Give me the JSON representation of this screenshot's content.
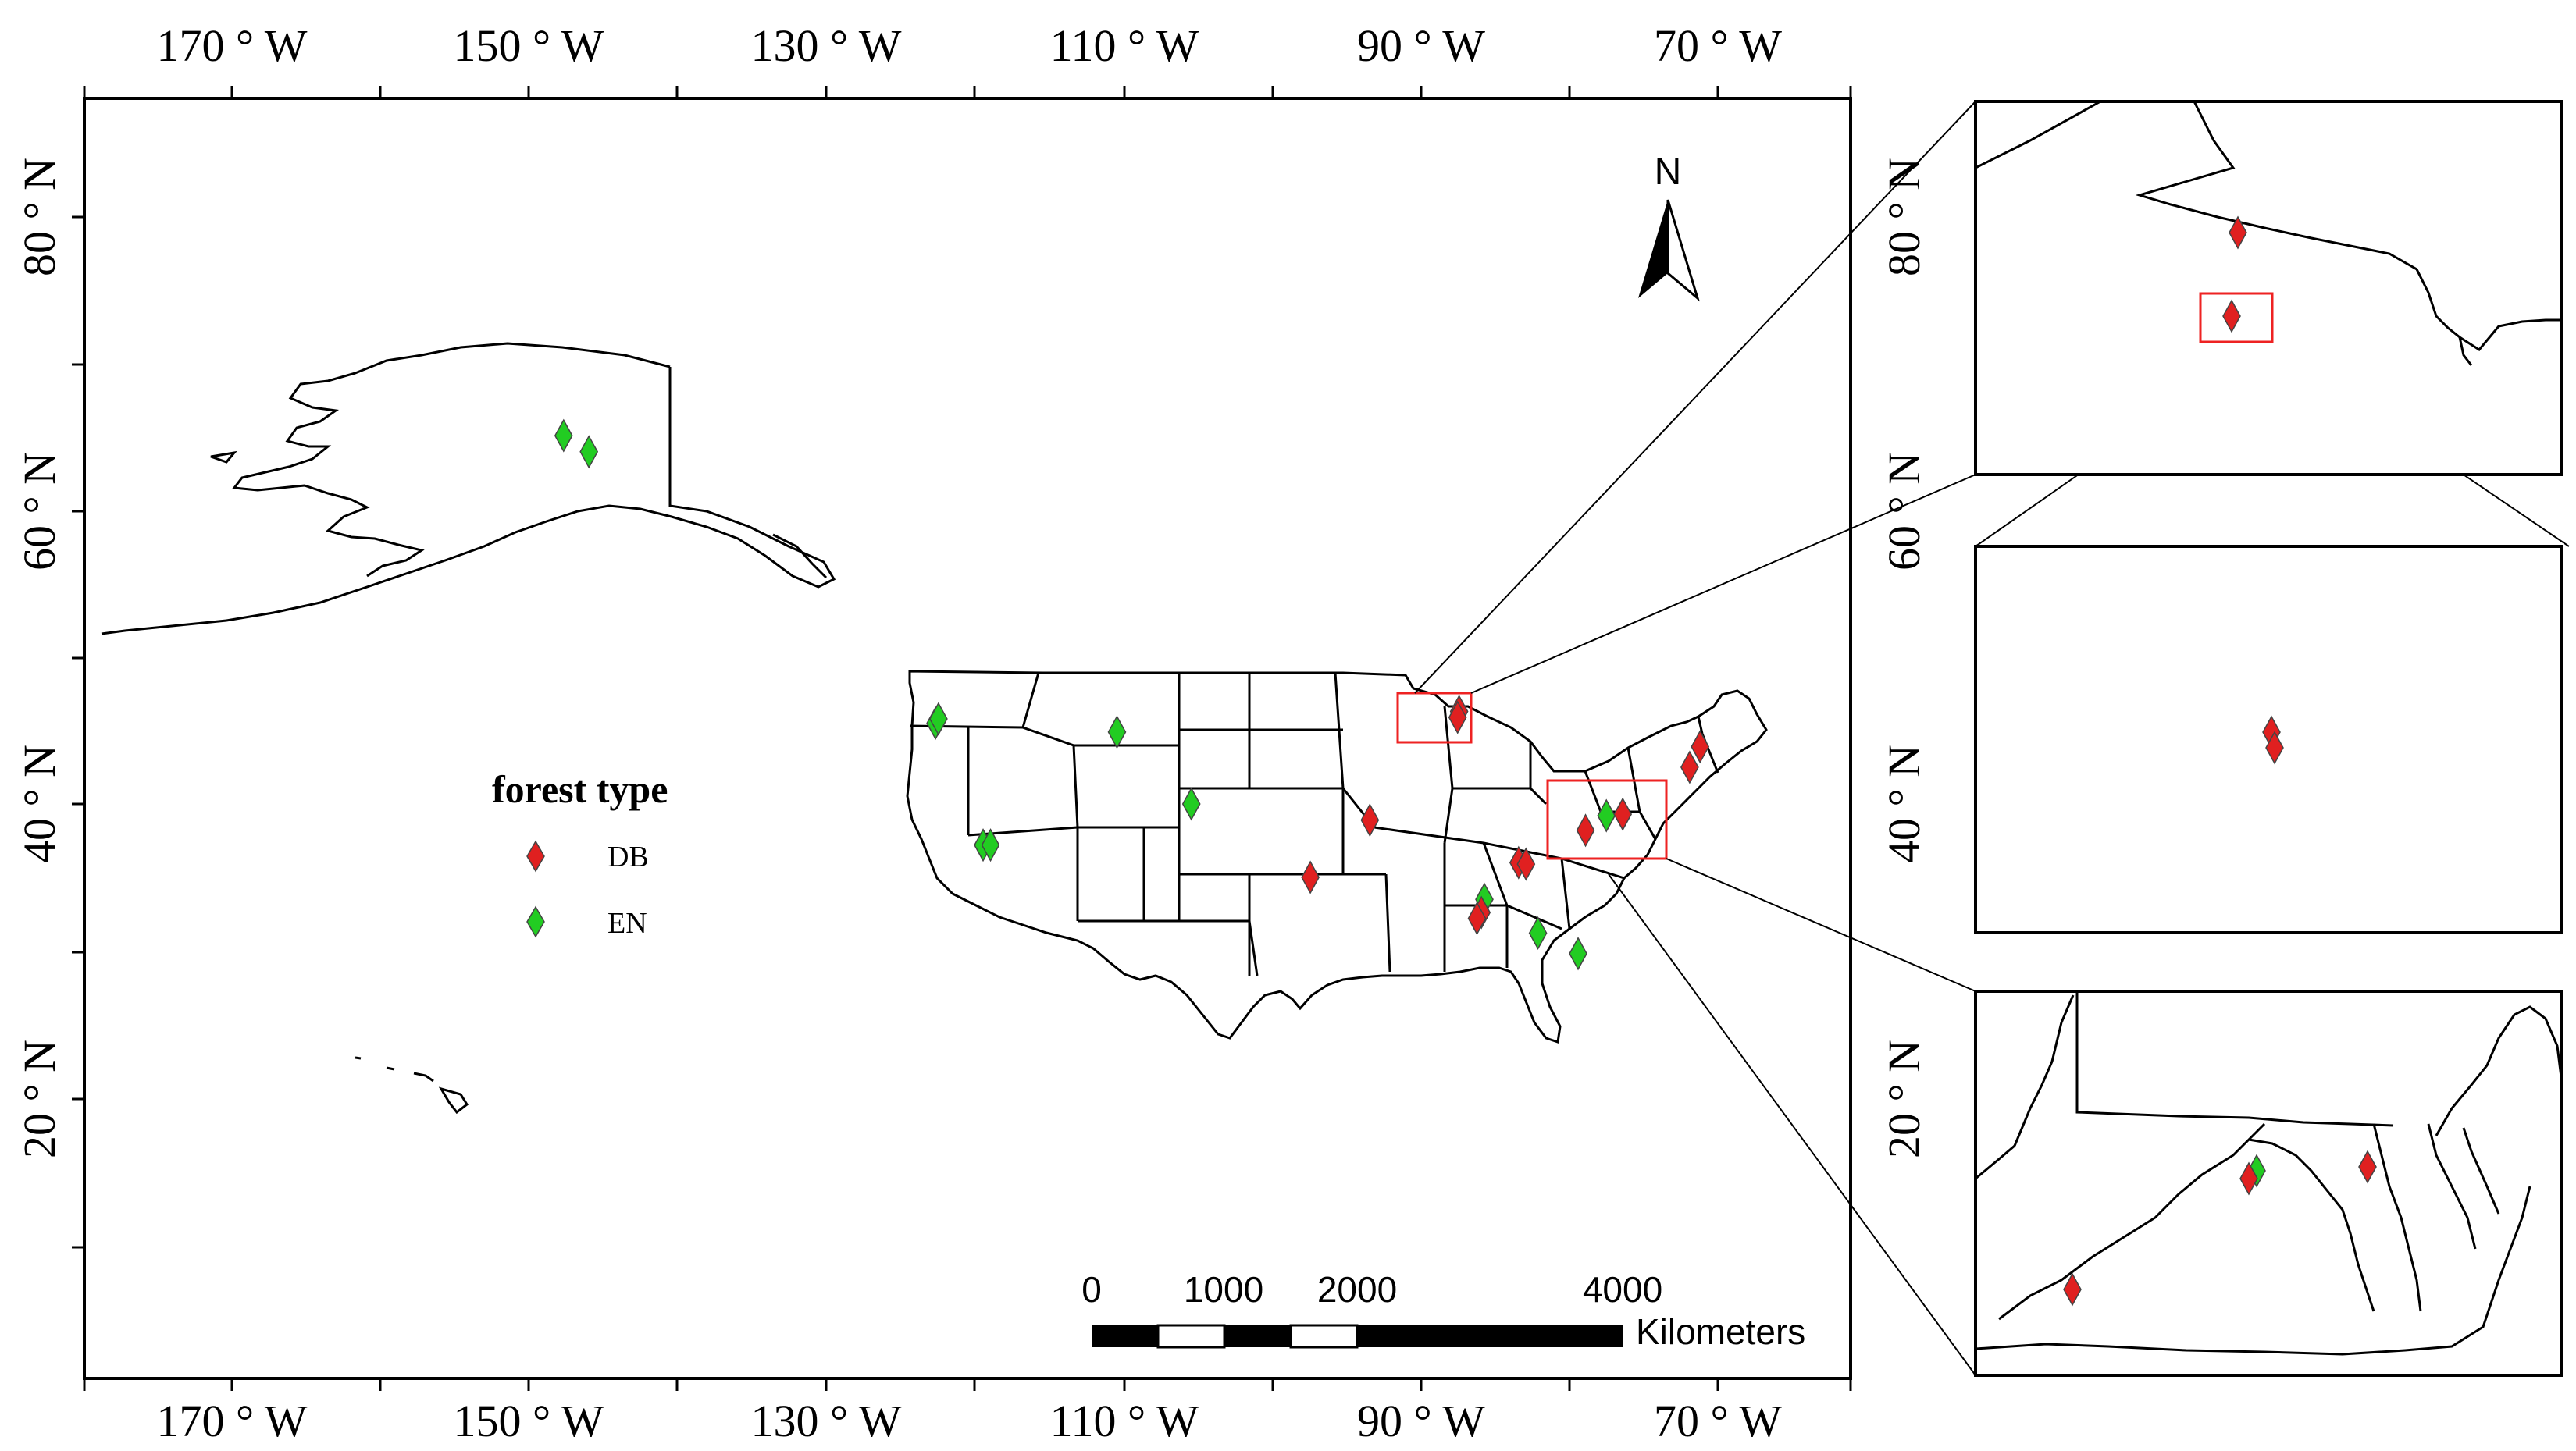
{
  "axes": {
    "lon_labels": [
      "170 ° W",
      "150 ° W",
      "130 ° W",
      "110 ° W",
      "90 ° W",
      "70 ° W"
    ],
    "lat_labels": [
      "80 ° N",
      "60 ° N",
      "40 ° N",
      "20 ° N"
    ],
    "inset_lat_labels": [
      "80 ° N",
      "60 ° N",
      "40 ° N",
      "20 ° N"
    ]
  },
  "north_arrow": {
    "label": "N",
    "icon": "north-arrow-icon"
  },
  "legend": {
    "title": "forest type",
    "items": [
      {
        "label": "DB",
        "color": "#e02020"
      },
      {
        "label": "EN",
        "color": "#22cc22"
      }
    ]
  },
  "scale_bar": {
    "ticks": [
      "0",
      "1000",
      "2000",
      "4000"
    ],
    "unit": "Kilometers"
  },
  "highlight_color": "#ee2222",
  "sites": {
    "DB": [
      [
        -87.5,
        46.3
      ],
      [
        -87.6,
        45.9
      ],
      [
        -93.5,
        38.9
      ],
      [
        -97.5,
        35.0
      ],
      [
        -86.0,
        32.6
      ],
      [
        -86.3,
        32.2
      ],
      [
        -83.5,
        36.0
      ],
      [
        -83.0,
        35.9
      ],
      [
        -79.0,
        38.2
      ],
      [
        -76.5,
        39.3
      ],
      [
        -72.0,
        42.5
      ],
      [
        -71.3,
        43.9
      ]
    ],
    "EN": [
      [
        -122.7,
        45.5
      ],
      [
        -122.5,
        45.8
      ],
      [
        -119.5,
        37.2
      ],
      [
        -119.0,
        37.2
      ],
      [
        -110.5,
        44.9
      ],
      [
        -105.5,
        40.0
      ],
      [
        -85.8,
        33.5
      ],
      [
        -82.2,
        31.2
      ],
      [
        -79.5,
        29.8
      ],
      [
        -77.6,
        39.2
      ],
      [
        -147.7,
        65.1
      ],
      [
        -146.0,
        64.0
      ]
    ]
  }
}
